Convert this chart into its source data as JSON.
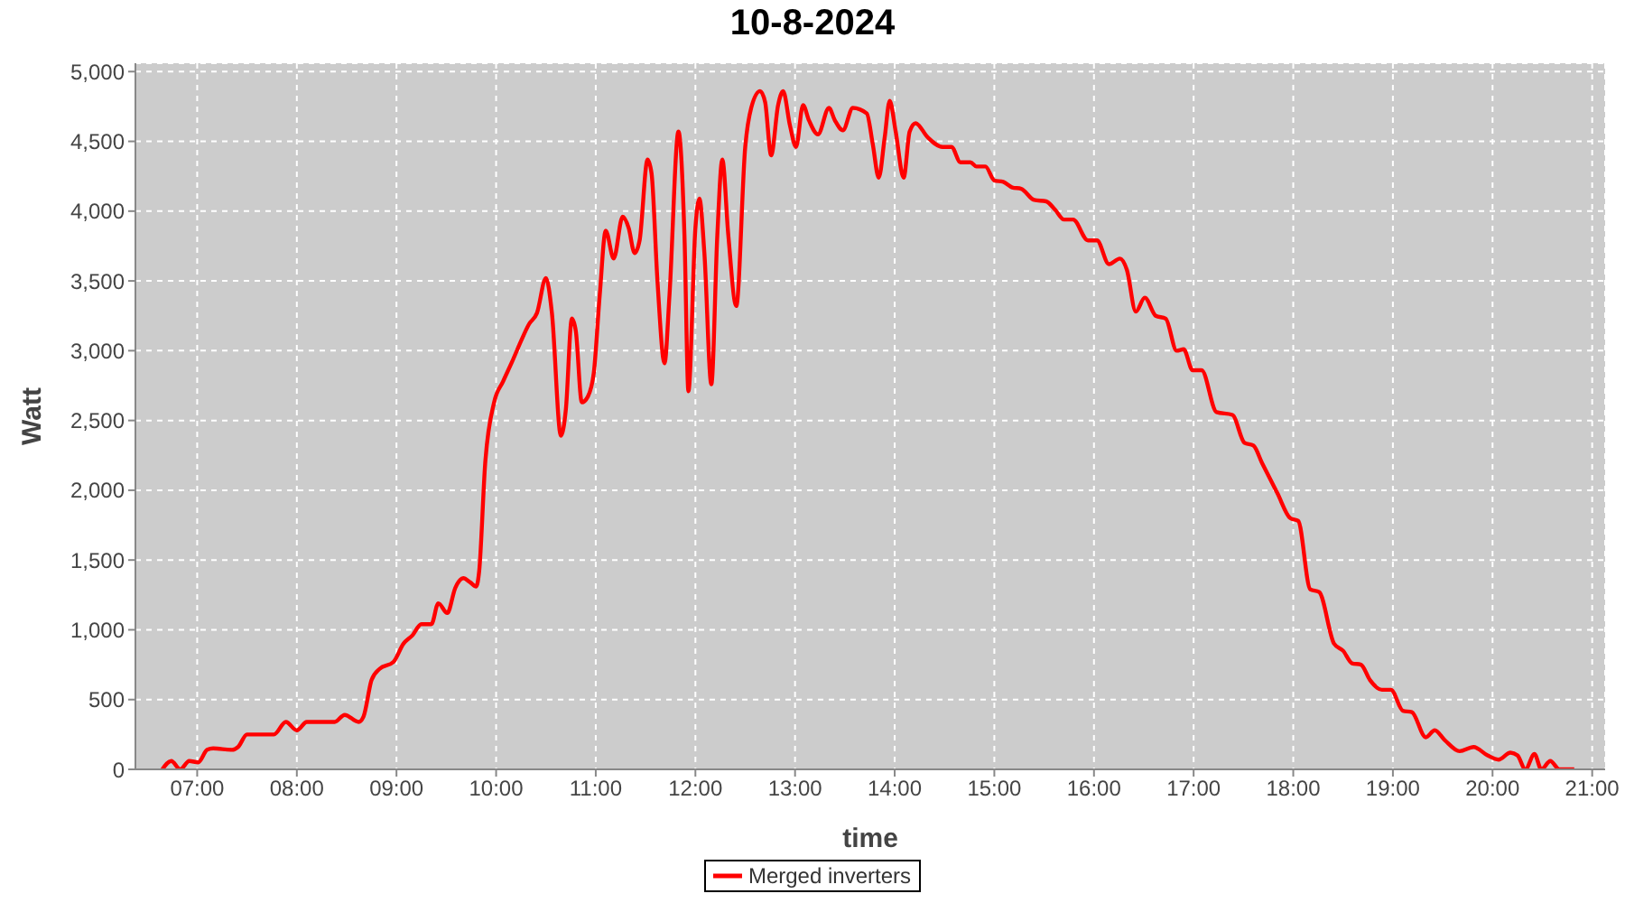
{
  "chart_data": {
    "type": "line",
    "title": "10-8-2024",
    "xlabel": "time",
    "ylabel": "Watt",
    "grid": true,
    "legend": "bottom",
    "marker": "none",
    "line_style": "solid",
    "xlim": [
      6.38,
      21.13
    ],
    "xticks": [
      {
        "value": 7,
        "label": "07:00"
      },
      {
        "value": 8,
        "label": "08:00"
      },
      {
        "value": 9,
        "label": "09:00"
      },
      {
        "value": 10,
        "label": "10:00"
      },
      {
        "value": 11,
        "label": "11:00"
      },
      {
        "value": 12,
        "label": "12:00"
      },
      {
        "value": 13,
        "label": "13:00"
      },
      {
        "value": 14,
        "label": "14:00"
      },
      {
        "value": 15,
        "label": "15:00"
      },
      {
        "value": 16,
        "label": "16:00"
      },
      {
        "value": 17,
        "label": "17:00"
      },
      {
        "value": 18,
        "label": "18:00"
      },
      {
        "value": 19,
        "label": "19:00"
      },
      {
        "value": 20,
        "label": "20:00"
      },
      {
        "value": 21,
        "label": "21:00"
      }
    ],
    "ylim": [
      0,
      5060
    ],
    "yticks": [
      0,
      {
        "value": 500,
        "label": "500"
      },
      {
        "value": 1000,
        "label": "1,000"
      },
      {
        "value": 1500,
        "label": "1,500"
      },
      {
        "value": 2000,
        "label": "2,000"
      },
      {
        "value": 2500,
        "label": "2,500"
      },
      {
        "value": 3000,
        "label": "3,000"
      },
      {
        "value": 3500,
        "label": "3,500"
      },
      {
        "value": 4000,
        "label": "4,000"
      },
      {
        "value": 4500,
        "label": "4,500"
      },
      {
        "value": 5000,
        "label": "5,000"
      }
    ],
    "series": [
      {
        "name": "Merged inverters",
        "color": "#ff0000",
        "x": [
          6.65,
          6.74,
          6.83,
          6.92,
          7.01,
          7.1,
          7.16,
          7.35,
          7.41,
          7.5,
          7.77,
          7.89,
          8.0,
          8.1,
          8.38,
          8.48,
          8.62,
          8.67,
          8.75,
          8.83,
          8.97,
          9.07,
          9.16,
          9.25,
          9.35,
          9.42,
          9.51,
          9.59,
          9.67,
          9.74,
          9.8,
          9.83,
          9.89,
          9.98,
          10.07,
          10.16,
          10.25,
          10.33,
          10.41,
          10.5,
          10.56,
          10.65,
          10.7,
          10.76,
          10.8,
          10.86,
          10.92,
          10.98,
          11.04,
          11.1,
          11.18,
          11.27,
          11.33,
          11.39,
          11.44,
          11.52,
          11.56,
          11.62,
          11.69,
          11.74,
          11.83,
          11.89,
          11.93,
          12.0,
          12.04,
          12.09,
          12.16,
          12.22,
          12.27,
          12.33,
          12.41,
          12.5,
          12.56,
          12.65,
          12.7,
          12.76,
          12.83,
          12.88,
          12.95,
          13.01,
          13.08,
          13.14,
          13.23,
          13.34,
          13.4,
          13.48,
          13.58,
          13.72,
          13.78,
          13.84,
          13.9,
          13.95,
          14.01,
          14.09,
          14.15,
          14.21,
          14.33,
          14.48,
          14.57,
          14.66,
          14.76,
          14.82,
          14.91,
          15.0,
          15.09,
          15.18,
          15.27,
          15.4,
          15.52,
          15.61,
          15.7,
          15.79,
          15.94,
          16.03,
          16.15,
          16.26,
          16.33,
          16.42,
          16.51,
          16.62,
          16.72,
          16.83,
          16.9,
          16.99,
          17.08,
          17.23,
          17.39,
          17.51,
          17.6,
          17.69,
          17.84,
          17.97,
          18.05,
          18.17,
          18.26,
          18.41,
          18.5,
          18.59,
          18.68,
          18.77,
          18.89,
          18.98,
          19.1,
          19.19,
          19.33,
          19.42,
          19.52,
          19.67,
          19.81,
          19.95,
          20.06,
          20.18,
          20.25,
          20.33,
          20.42,
          20.49,
          20.58,
          20.67,
          20.82
        ],
        "values": [
          0,
          60,
          0,
          60,
          50,
          140,
          150,
          140,
          160,
          250,
          250,
          340,
          280,
          340,
          340,
          390,
          340,
          380,
          640,
          720,
          770,
          900,
          960,
          1040,
          1040,
          1190,
          1120,
          1300,
          1370,
          1340,
          1310,
          1420,
          2190,
          2630,
          2780,
          2920,
          3070,
          3190,
          3270,
          3520,
          3270,
          2390,
          2580,
          3230,
          3140,
          2630,
          2670,
          2840,
          3400,
          3860,
          3660,
          3960,
          3880,
          3700,
          3790,
          4370,
          4270,
          3490,
          2910,
          3400,
          4570,
          3830,
          2710,
          3880,
          4090,
          3700,
          2760,
          3830,
          4370,
          3830,
          3320,
          4460,
          4740,
          4860,
          4780,
          4400,
          4760,
          4860,
          4610,
          4460,
          4760,
          4650,
          4550,
          4740,
          4650,
          4580,
          4740,
          4700,
          4480,
          4240,
          4530,
          4790,
          4570,
          4240,
          4570,
          4630,
          4530,
          4460,
          4460,
          4350,
          4350,
          4320,
          4320,
          4220,
          4210,
          4170,
          4160,
          4080,
          4070,
          4010,
          3940,
          3940,
          3790,
          3790,
          3620,
          3660,
          3580,
          3280,
          3380,
          3250,
          3230,
          3000,
          3010,
          2860,
          2860,
          2560,
          2540,
          2340,
          2320,
          2190,
          1980,
          1800,
          1780,
          1290,
          1270,
          900,
          850,
          760,
          750,
          640,
          570,
          570,
          420,
          410,
          230,
          280,
          210,
          130,
          160,
          100,
          70,
          120,
          100,
          0,
          110,
          0,
          60,
          0,
          0
        ]
      }
    ]
  }
}
